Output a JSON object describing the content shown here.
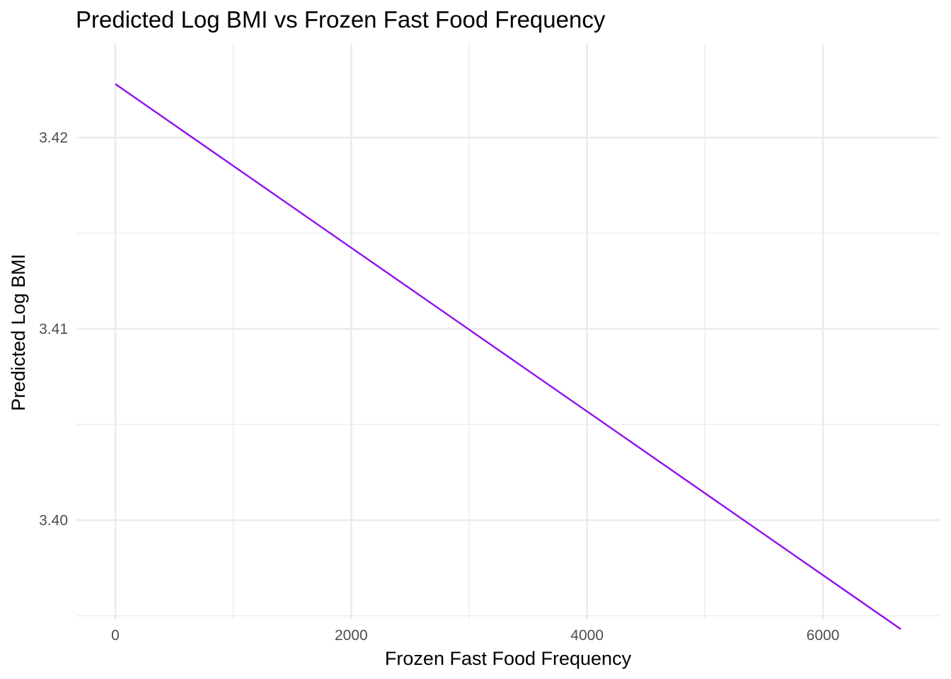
{
  "chart_data": {
    "type": "line",
    "title": "Predicted Log BMI vs Frozen Fast Food Frequency",
    "xlabel": "Frozen Fast Food Frequency",
    "ylabel": "Predicted Log BMI",
    "xlim": [
      -330,
      6990
    ],
    "ylim": [
      3.3948,
      3.4249
    ],
    "x_ticks": [
      0,
      2000,
      4000,
      6000
    ],
    "x_tick_labels": [
      "0",
      "2000",
      "4000",
      "6000"
    ],
    "x_minor_ticks": [
      1000,
      3000,
      5000
    ],
    "y_ticks": [
      3.4,
      3.41,
      3.42
    ],
    "y_tick_labels": [
      "3.40",
      "3.41",
      "3.42"
    ],
    "y_minor_ticks": [
      3.395,
      3.405,
      3.415
    ],
    "grid": true,
    "legend": "none",
    "series": [
      {
        "color": "#9010ee",
        "x": [
          0,
          6660
        ],
        "y": [
          3.4228,
          3.3943
        ]
      }
    ]
  }
}
